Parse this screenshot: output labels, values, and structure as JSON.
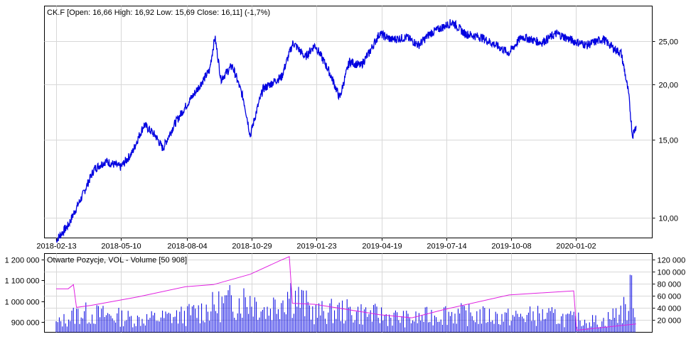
{
  "price_panel": {
    "title": "CK.F [Open: 16,66  High: 16,92  Low: 15,69  Close: 16,11] (-1,7%)"
  },
  "volume_panel": {
    "title": "Otwarte Pozycje, VOL - Volume [50 908]"
  },
  "colors": {
    "price": "#0000e0",
    "volume": "#0000e0",
    "open_interest": "#e020e0",
    "grid": "#d8d8d8"
  },
  "chart_data": [
    {
      "type": "line",
      "title": "CK.F [Open: 16,66  High: 16,92  Low: 15,69  Close: 16,11] (-1,7%)",
      "scale": "log",
      "x_tick_labels": [
        "2018-02-13",
        "2018-05-10",
        "2018-08-04",
        "2018-10-29",
        "2019-01-23",
        "2019-04-19",
        "2019-07-14",
        "2019-10-08",
        "2020-01-02"
      ],
      "y_tick_labels": [
        "10,00",
        "15,00",
        "20,00",
        "25,00"
      ],
      "y_ticks": [
        10,
        15,
        20,
        25
      ],
      "ylim": [
        9.0,
        30.0
      ],
      "grid": true,
      "series": [
        {
          "values": [
            {
              "x": "2018-02-13",
              "y": 8.9
            },
            {
              "x": "2018-03-01",
              "y": 9.6
            },
            {
              "x": "2018-03-20",
              "y": 11.2
            },
            {
              "x": "2018-04-05",
              "y": 12.9
            },
            {
              "x": "2018-04-20",
              "y": 13.4
            },
            {
              "x": "2018-05-10",
              "y": 13.0
            },
            {
              "x": "2018-05-25",
              "y": 14.0
            },
            {
              "x": "2018-06-10",
              "y": 16.2
            },
            {
              "x": "2018-06-25",
              "y": 15.3
            },
            {
              "x": "2018-07-05",
              "y": 14.3
            },
            {
              "x": "2018-07-20",
              "y": 16.2
            },
            {
              "x": "2018-08-04",
              "y": 17.8
            },
            {
              "x": "2018-08-20",
              "y": 19.5
            },
            {
              "x": "2018-09-05",
              "y": 21.5
            },
            {
              "x": "2018-09-12",
              "y": 25.5
            },
            {
              "x": "2018-09-20",
              "y": 20.5
            },
            {
              "x": "2018-10-05",
              "y": 22.0
            },
            {
              "x": "2018-10-20",
              "y": 18.5
            },
            {
              "x": "2018-10-29",
              "y": 15.3
            },
            {
              "x": "2018-11-15",
              "y": 19.5
            },
            {
              "x": "2018-12-10",
              "y": 20.8
            },
            {
              "x": "2018-12-25",
              "y": 24.8
            },
            {
              "x": "2019-01-10",
              "y": 23.0
            },
            {
              "x": "2019-01-23",
              "y": 24.5
            },
            {
              "x": "2019-02-10",
              "y": 21.5
            },
            {
              "x": "2019-02-25",
              "y": 18.6
            },
            {
              "x": "2019-03-10",
              "y": 22.5
            },
            {
              "x": "2019-03-25",
              "y": 22.0
            },
            {
              "x": "2019-04-05",
              "y": 23.5
            },
            {
              "x": "2019-04-19",
              "y": 26.0
            },
            {
              "x": "2019-05-05",
              "y": 25.2
            },
            {
              "x": "2019-05-25",
              "y": 25.5
            },
            {
              "x": "2019-06-10",
              "y": 24.5
            },
            {
              "x": "2019-06-25",
              "y": 26.0
            },
            {
              "x": "2019-07-14",
              "y": 27.0
            },
            {
              "x": "2019-07-25",
              "y": 27.6
            },
            {
              "x": "2019-08-10",
              "y": 26.0
            },
            {
              "x": "2019-09-01",
              "y": 25.5
            },
            {
              "x": "2019-09-20",
              "y": 24.5
            },
            {
              "x": "2019-10-08",
              "y": 23.5
            },
            {
              "x": "2019-10-25",
              "y": 25.6
            },
            {
              "x": "2019-11-20",
              "y": 24.8
            },
            {
              "x": "2019-12-10",
              "y": 26.0
            },
            {
              "x": "2020-01-02",
              "y": 25.0
            },
            {
              "x": "2020-01-20",
              "y": 24.5
            },
            {
              "x": "2020-02-10",
              "y": 25.3
            },
            {
              "x": "2020-02-25",
              "y": 24.0
            },
            {
              "x": "2020-03-05",
              "y": 23.5
            },
            {
              "x": "2020-03-15",
              "y": 19.0
            },
            {
              "x": "2020-03-20",
              "y": 15.3
            },
            {
              "x": "2020-03-25",
              "y": 16.1
            }
          ]
        }
      ]
    },
    {
      "type": "bar",
      "title": "Otwarte Pozycje, VOL - Volume [50 908]",
      "left_axis_tick_labels": [
        "900 000",
        "1 000 000",
        "1 100 000",
        "1 200 000"
      ],
      "left_axis_ticks": [
        900000,
        1000000,
        1100000,
        1200000
      ],
      "left_axis_range": [
        850000,
        1230000
      ],
      "right_axis_tick_labels": [
        "20 000",
        "40 000",
        "60 000",
        "80 000",
        "100 000",
        "120 000"
      ],
      "right_axis_ticks": [
        20000,
        40000,
        60000,
        80000,
        100000,
        120000
      ],
      "right_axis_range": [
        0,
        130000
      ],
      "grid": true,
      "series": [
        {
          "type": "line",
          "axis": "left",
          "values": [
            {
              "x": "2018-02-13",
              "y": 1060000
            },
            {
              "x": "2018-03-01",
              "y": 1060000
            },
            {
              "x": "2018-03-08",
              "y": 1080000
            },
            {
              "x": "2018-03-12",
              "y": 970000
            },
            {
              "x": "2018-04-01",
              "y": 980000
            },
            {
              "x": "2018-06-01",
              "y": 1020000
            },
            {
              "x": "2018-08-04",
              "y": 1070000
            },
            {
              "x": "2018-09-10",
              "y": 1080000
            },
            {
              "x": "2018-10-29",
              "y": 1130000
            },
            {
              "x": "2018-12-10",
              "y": 1200000
            },
            {
              "x": "2018-12-20",
              "y": 1215000
            },
            {
              "x": "2018-12-24",
              "y": 990000
            },
            {
              "x": "2019-01-23",
              "y": 985000
            },
            {
              "x": "2019-04-19",
              "y": 935000
            },
            {
              "x": "2019-06-01",
              "y": 920000
            },
            {
              "x": "2019-07-14",
              "y": 960000
            },
            {
              "x": "2019-10-08",
              "y": 1030000
            },
            {
              "x": "2020-01-02",
              "y": 1050000
            },
            {
              "x": "2020-01-06",
              "y": 860000
            },
            {
              "x": "2020-03-25",
              "y": 890000
            }
          ]
        },
        {
          "type": "bar",
          "axis": "right",
          "values": [
            {
              "x": "2018-02-13",
              "y": 20000
            },
            {
              "x": "2018-03-15",
              "y": 45000
            },
            {
              "x": "2018-04-20",
              "y": 40000
            },
            {
              "x": "2018-06-01",
              "y": 30000
            },
            {
              "x": "2018-07-10",
              "y": 35000
            },
            {
              "x": "2018-08-04",
              "y": 40000
            },
            {
              "x": "2018-09-12",
              "y": 60000
            },
            {
              "x": "2018-10-01",
              "y": 70000
            },
            {
              "x": "2018-10-29",
              "y": 80000
            },
            {
              "x": "2018-11-20",
              "y": 50000
            },
            {
              "x": "2018-12-20",
              "y": 95000
            },
            {
              "x": "2019-01-23",
              "y": 45000
            },
            {
              "x": "2019-02-25",
              "y": 50000
            },
            {
              "x": "2019-04-19",
              "y": 40000
            },
            {
              "x": "2019-06-01",
              "y": 30000
            },
            {
              "x": "2019-07-14",
              "y": 45000
            },
            {
              "x": "2019-08-20",
              "y": 40000
            },
            {
              "x": "2019-10-08",
              "y": 35000
            },
            {
              "x": "2019-11-20",
              "y": 40000
            },
            {
              "x": "2020-01-02",
              "y": 30000
            },
            {
              "x": "2020-02-10",
              "y": 25000
            },
            {
              "x": "2020-03-15",
              "y": 60000
            },
            {
              "x": "2020-03-20",
              "y": 120000
            },
            {
              "x": "2020-03-25",
              "y": 50000
            }
          ]
        }
      ]
    }
  ]
}
